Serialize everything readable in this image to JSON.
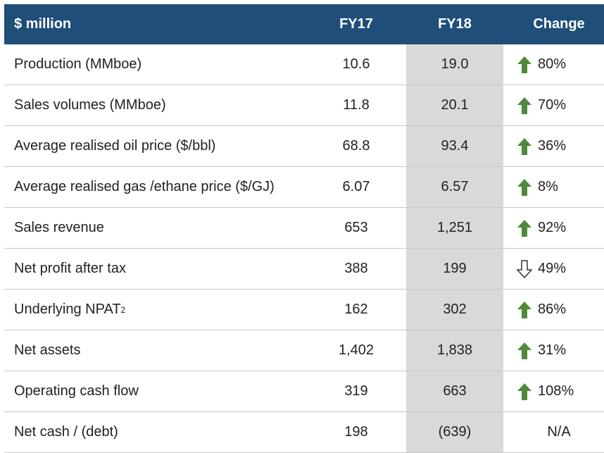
{
  "header": {
    "label": "$ million",
    "fy17": "FY17",
    "fy18": "FY18",
    "change": "Change"
  },
  "rows": [
    {
      "label": "Production (MMboe)",
      "fy17": "10.6",
      "fy18": "19.0",
      "change": "80%",
      "direction": "up"
    },
    {
      "label": "Sales volumes (MMboe)",
      "fy17": "11.8",
      "fy18": "20.1",
      "change": "70%",
      "direction": "up"
    },
    {
      "label": "Average realised oil price ($/bbl)",
      "fy17": "68.8",
      "fy18": "93.4",
      "change": "36%",
      "direction": "up"
    },
    {
      "label": "Average realised gas /ethane price ($/GJ)",
      "fy17": "6.07",
      "fy18": "6.57",
      "change": "8%",
      "direction": "up"
    },
    {
      "label": "Sales revenue",
      "fy17": "653",
      "fy18": "1,251",
      "change": "92%",
      "direction": "up"
    },
    {
      "label": "Net profit after tax",
      "fy17": "388",
      "fy18": "199",
      "change": "49%",
      "direction": "down"
    },
    {
      "label": "Underlying NPAT",
      "label_sup": "2",
      "fy17": "162",
      "fy18": "302",
      "change": "86%",
      "direction": "up"
    },
    {
      "label": "Net assets",
      "fy17": "1,402",
      "fy18": "1,838",
      "change": "31%",
      "direction": "up"
    },
    {
      "label": "Operating cash flow",
      "fy17": "319",
      "fy18": "663",
      "change": "108%",
      "direction": "up"
    },
    {
      "label": "Net cash / (debt)",
      "fy17": "198",
      "fy18": "(639)",
      "change": "N/A",
      "direction": "none"
    }
  ],
  "colors": {
    "header_bg": "#1f4e79",
    "fy18_highlight": "#d9d9d9",
    "up_arrow": "#4e8a3a",
    "down_arrow_outline": "#333333"
  }
}
